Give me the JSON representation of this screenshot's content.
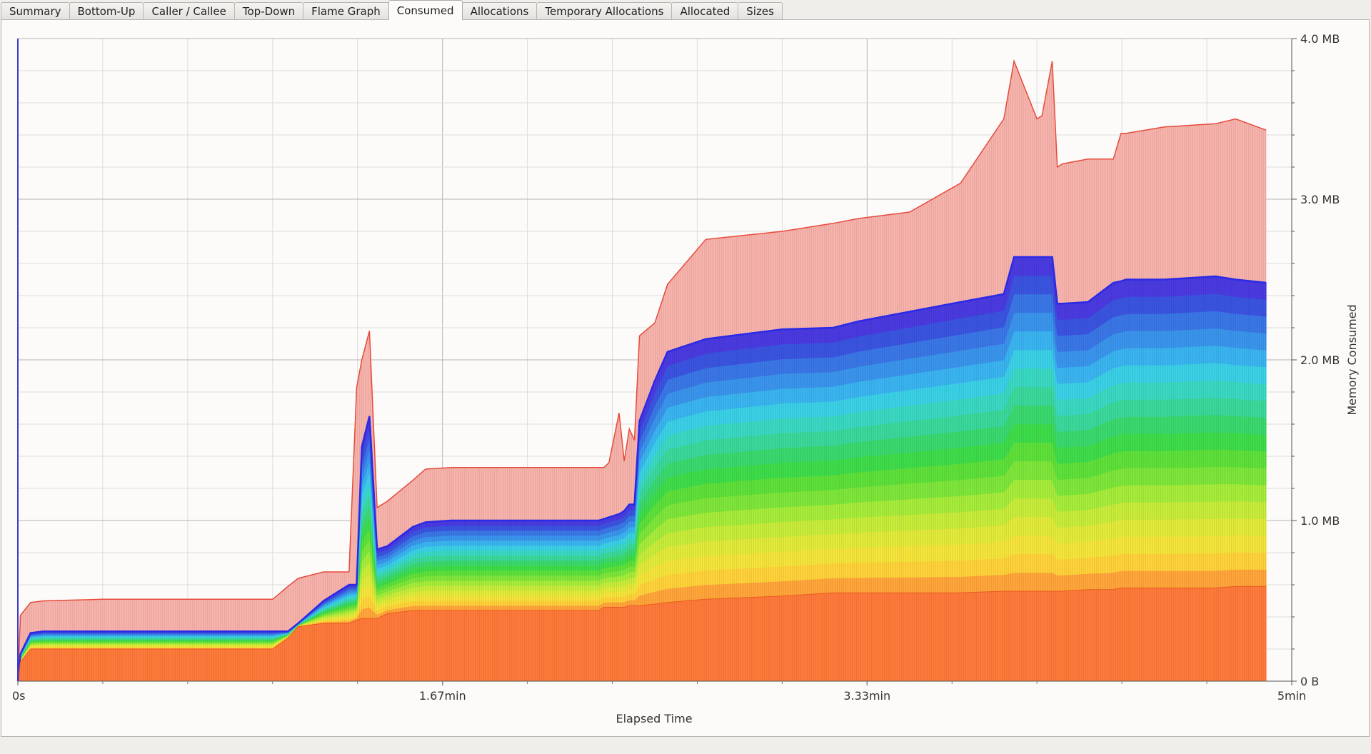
{
  "tabs": [
    {
      "label": "Summary",
      "active": false,
      "name": "tab-summary"
    },
    {
      "label": "Bottom-Up",
      "active": false,
      "name": "tab-bottom-up"
    },
    {
      "label": "Caller / Callee",
      "active": false,
      "name": "tab-caller-callee"
    },
    {
      "label": "Top-Down",
      "active": false,
      "name": "tab-top-down"
    },
    {
      "label": "Flame Graph",
      "active": false,
      "name": "tab-flame-graph"
    },
    {
      "label": "Consumed",
      "active": true,
      "name": "tab-consumed"
    },
    {
      "label": "Allocations",
      "active": false,
      "name": "tab-allocations"
    },
    {
      "label": "Temporary Allocations",
      "active": false,
      "name": "tab-temporary-allocations"
    },
    {
      "label": "Allocated",
      "active": false,
      "name": "tab-allocated"
    },
    {
      "label": "Sizes",
      "active": false,
      "name": "tab-sizes"
    }
  ],
  "chart_data": {
    "type": "area",
    "stacked": true,
    "xlabel": "Elapsed Time",
    "ylabel": "Memory Consumed",
    "x_unit": "min",
    "y_unit": "MB",
    "xlim": [
      0,
      5
    ],
    "ylim": [
      0,
      4
    ],
    "x_ticks": [
      {
        "v": 0,
        "label": "0s"
      },
      {
        "v": 1.667,
        "label": "1.67min"
      },
      {
        "v": 3.333,
        "label": "3.33min"
      },
      {
        "v": 5,
        "label": "5min"
      }
    ],
    "y_ticks": [
      {
        "v": 0,
        "label": "0 B"
      },
      {
        "v": 1,
        "label": "1.0 MB"
      },
      {
        "v": 2,
        "label": "2.0 MB"
      },
      {
        "v": 3,
        "label": "3.0 MB"
      },
      {
        "v": 4,
        "label": "4.0 MB"
      }
    ],
    "grid": true,
    "y_axis_side": "right",
    "series_colors": [
      "#ff7a3a",
      "#ffa53a",
      "#ffd23a",
      "#f5e43a",
      "#e2ea3a",
      "#c8ec3a",
      "#a6ec3a",
      "#7ee63a",
      "#5ee03a",
      "#3edc4a",
      "#3ad86e",
      "#3ad89a",
      "#3ad8c2",
      "#3ad0e6",
      "#3ab4f0",
      "#3a94ec",
      "#3a76e6",
      "#3a54e0",
      "#4a3ae0"
    ],
    "x": [
      0,
      0.01,
      0.05,
      0.1,
      0.33,
      1.0,
      1.06,
      1.1,
      1.2,
      1.3,
      1.33,
      1.35,
      1.38,
      1.41,
      1.45,
      1.55,
      1.6,
      1.7,
      2.0,
      2.28,
      2.3,
      2.32,
      2.36,
      2.38,
      2.4,
      2.42,
      2.44,
      2.5,
      2.55,
      2.7,
      3.0,
      3.2,
      3.3,
      3.5,
      3.7,
      3.87,
      3.91,
      4.0,
      4.02,
      4.06,
      4.08,
      4.1,
      4.2,
      4.3,
      4.33,
      4.35,
      4.5,
      4.7,
      4.78,
      4.9
    ],
    "total_consumed": [
      0,
      0.41,
      0.49,
      0.5,
      0.51,
      0.51,
      0.59,
      0.64,
      0.68,
      0.68,
      1.83,
      2.0,
      2.18,
      1.08,
      1.12,
      1.25,
      1.32,
      1.33,
      1.33,
      1.33,
      1.33,
      1.36,
      1.67,
      1.37,
      1.57,
      1.5,
      2.15,
      2.23,
      2.47,
      2.75,
      2.8,
      2.85,
      2.88,
      2.92,
      3.1,
      3.5,
      3.86,
      3.5,
      3.52,
      3.86,
      3.2,
      3.22,
      3.25,
      3.25,
      3.41,
      3.41,
      3.45,
      3.47,
      3.5,
      3.43
    ],
    "peak_stacked_top": [
      0,
      0.17,
      0.3,
      0.31,
      0.31,
      0.31,
      0.31,
      0.36,
      0.5,
      0.6,
      0.6,
      1.46,
      1.65,
      0.82,
      0.84,
      0.96,
      0.99,
      1.0,
      1.0,
      1.0,
      1.01,
      1.02,
      1.04,
      1.06,
      1.1,
      1.1,
      1.62,
      1.87,
      2.05,
      2.13,
      2.19,
      2.2,
      2.24,
      2.3,
      2.36,
      2.41,
      2.64,
      2.64,
      2.64,
      2.64,
      2.35,
      2.35,
      2.36,
      2.48,
      2.49,
      2.5,
      2.5,
      2.52,
      2.5,
      2.48
    ],
    "base_series_top": [
      0,
      0.12,
      0.2,
      0.2,
      0.2,
      0.2,
      0.27,
      0.34,
      0.36,
      0.36,
      0.38,
      0.39,
      0.39,
      0.39,
      0.42,
      0.44,
      0.44,
      0.44,
      0.44,
      0.44,
      0.46,
      0.46,
      0.46,
      0.46,
      0.47,
      0.47,
      0.47,
      0.48,
      0.49,
      0.51,
      0.53,
      0.55,
      0.55,
      0.55,
      0.55,
      0.56,
      0.56,
      0.56,
      0.56,
      0.56,
      0.56,
      0.56,
      0.57,
      0.57,
      0.58,
      0.58,
      0.58,
      0.58,
      0.59,
      0.59
    ]
  }
}
